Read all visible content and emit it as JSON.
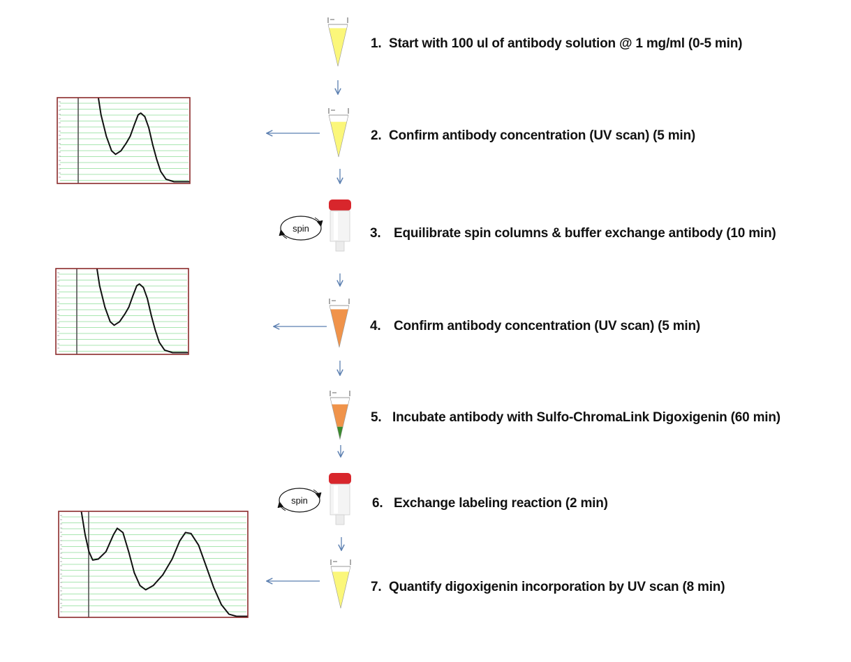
{
  "steps": [
    {
      "number": "1.",
      "text": "Start with 100 ul of antibody solution @ 1 mg/ml (0-5 min)"
    },
    {
      "number": "2.",
      "text": "Confirm antibody concentration (UV scan) (5 min)"
    },
    {
      "number": "3.",
      "text": "Equilibrate spin columns & buffer exchange antibody (10 min)"
    },
    {
      "number": "4.",
      "text": "Confirm antibody concentration (UV scan) (5 min)"
    },
    {
      "number": "5.",
      "text": "Incubate antibody with Sulfo-ChromaLink  Digoxigenin (60 min)"
    },
    {
      "number": "6.",
      "text": "Exchange labeling reaction (2 min)"
    },
    {
      "number": "7.",
      "text": "Quantify digoxigenin incorporation  by UV scan (8 min)"
    }
  ],
  "spin_labels": [
    "spin",
    "spin"
  ],
  "colors": {
    "arrow": "#5b7fb0",
    "yellow_liquid": "#fbf77a",
    "orange_liquid": "#f0934a",
    "green_liquid": "#3a8a2e",
    "cap_red": "#d8262c",
    "chart_border": "#8b2b2b",
    "grid_green": "#a8e6b0"
  }
}
